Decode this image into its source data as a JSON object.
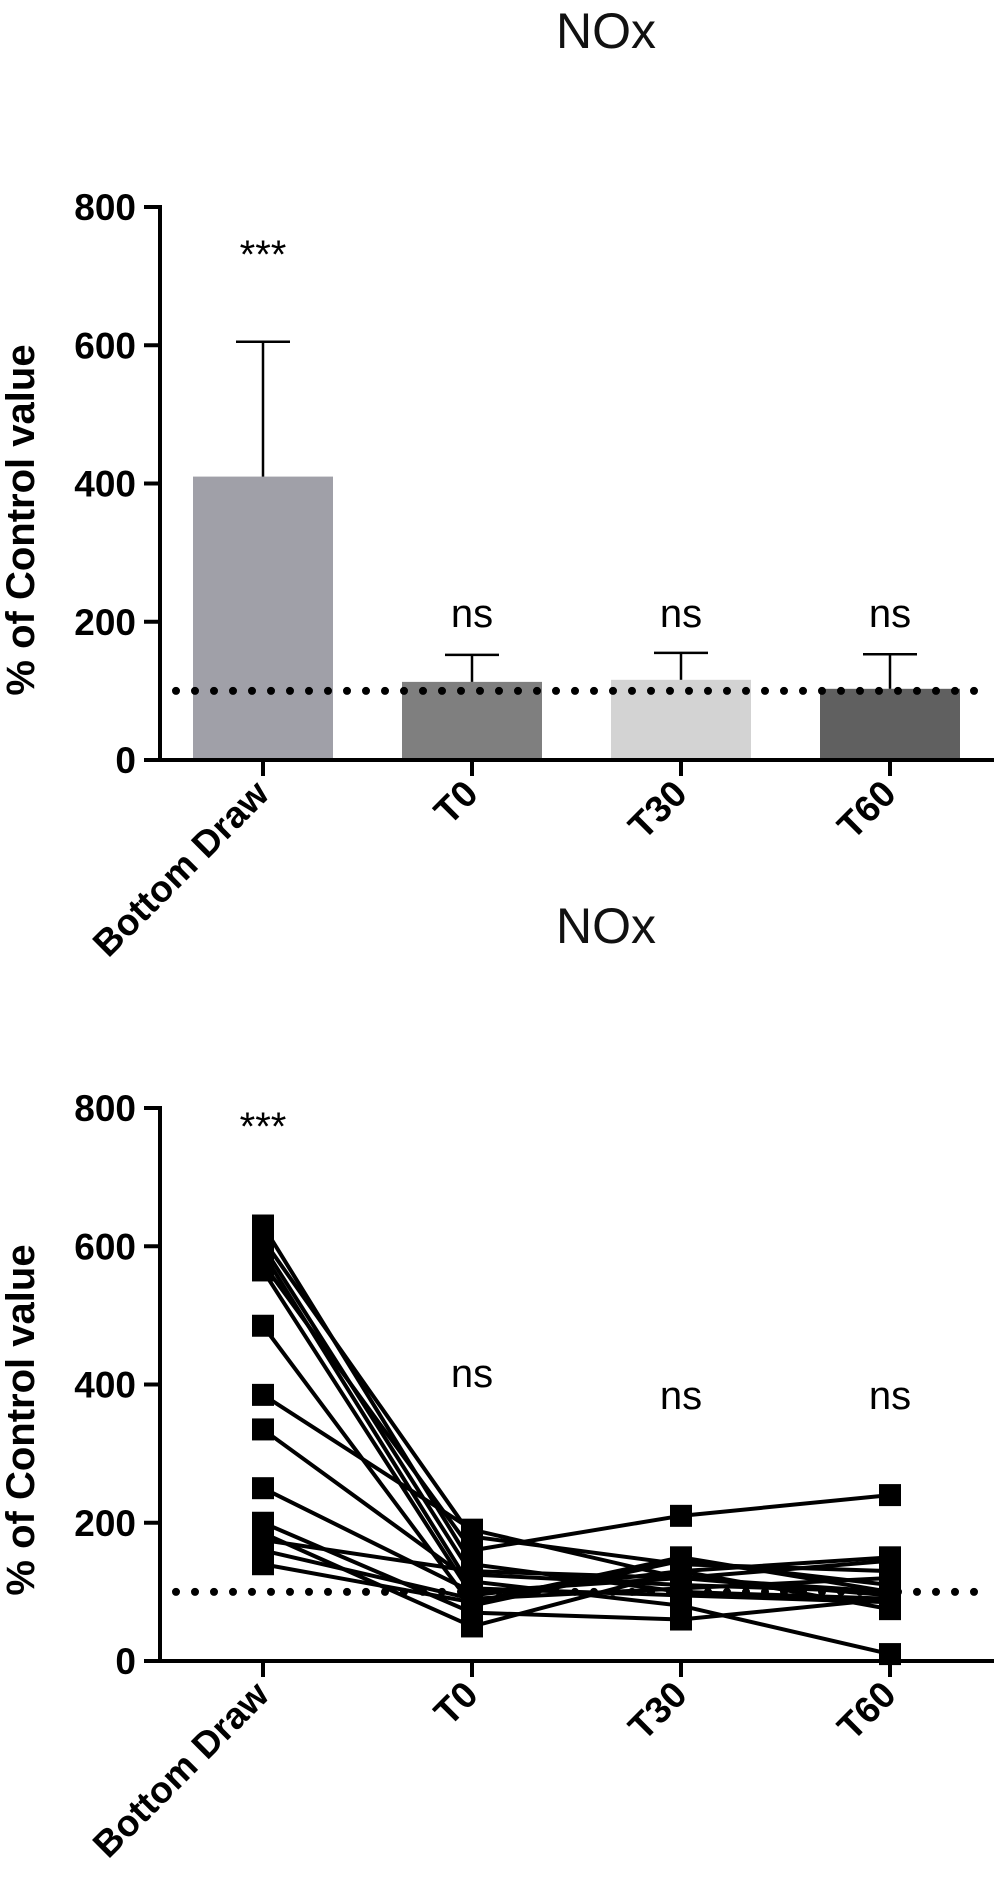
{
  "chart_data": [
    {
      "type": "bar",
      "title": "NOx",
      "ylabel": "% of Control value",
      "categories": [
        "Bottom Draw",
        "T0",
        "T30",
        "T60"
      ],
      "values": [
        410,
        113,
        116,
        103
      ],
      "error_upper": [
        605,
        152,
        155,
        153
      ],
      "colors": [
        "#a0a0a8",
        "#7f7f7f",
        "#d3d3d3",
        "#606060"
      ],
      "annotations": [
        "***",
        "ns",
        "ns",
        "ns"
      ],
      "reference_line": 100,
      "ylim": [
        0,
        800
      ],
      "yticks": [
        0,
        200,
        400,
        600,
        800
      ]
    },
    {
      "type": "line",
      "title": "NOx",
      "ylabel": "% of Control value",
      "categories": [
        "Bottom Draw",
        "T0",
        "T30",
        "T60"
      ],
      "annotations": [
        "***",
        "ns",
        "ns",
        "ns"
      ],
      "reference_line": 100,
      "ylim": [
        0,
        800
      ],
      "yticks": [
        0,
        200,
        400,
        600,
        800
      ],
      "series": [
        {
          "values": [
            630,
            140,
            100,
            90
          ]
        },
        {
          "values": [
            610,
            180,
            140,
            130
          ]
        },
        {
          "values": [
            600,
            125,
            110,
            100
          ]
        },
        {
          "values": [
            590,
            105,
            95,
            85
          ]
        },
        {
          "values": [
            575,
            160,
            210,
            240
          ]
        },
        {
          "values": [
            565,
            95,
            130,
            150
          ]
        },
        {
          "values": [
            485,
            80,
            145,
            110
          ]
        },
        {
          "values": [
            385,
            190,
            120,
            100
          ]
        },
        {
          "values": [
            335,
            115,
            80,
            10
          ]
        },
        {
          "values": [
            250,
            100,
            120,
            95
          ]
        },
        {
          "values": [
            200,
            70,
            60,
            90
          ]
        },
        {
          "values": [
            185,
            50,
            130,
            75
          ]
        },
        {
          "values": [
            175,
            130,
            120,
            145
          ]
        },
        {
          "values": [
            160,
            90,
            105,
            120
          ]
        },
        {
          "values": [
            140,
            85,
            150,
            100
          ]
        }
      ]
    }
  ]
}
